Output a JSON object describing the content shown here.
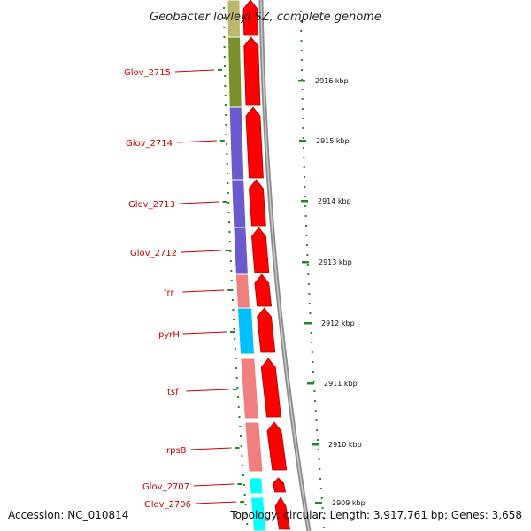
{
  "title": "Geobacter lovleyi SZ, complete genome",
  "footer": {
    "accession": "Accession: NC_010814",
    "topology": "Topology: circular; Length: 3,917,761 bp; Genes: 3,658"
  },
  "colors": {
    "red_arrow": "#ff0000",
    "dark_red": "#b00000",
    "backbone": "#8c8c8c",
    "tick_green": "#1f8a1f",
    "label_red": "#cc0000"
  },
  "genes": [
    {
      "name": "Glov_2715",
      "color": "#7a8f2a"
    },
    {
      "name": "Glov_2714",
      "color": "#6a5acd"
    },
    {
      "name": "Glov_2713",
      "color": "#6a5acd"
    },
    {
      "name": "Glov_2712",
      "color": "#6a5acd"
    },
    {
      "name": "frr",
      "color": "#f08080"
    },
    {
      "name": "pyrH",
      "color": "#00bfff"
    },
    {
      "name": "tsf",
      "color": "#f08080"
    },
    {
      "name": "rpsB",
      "color": "#f08080"
    },
    {
      "name": "Glov_2707",
      "color": "#00ffff"
    },
    {
      "name": "Glov_2706",
      "color": "#00ffff"
    }
  ],
  "top_partial_color": "#bdb76b",
  "kbp_labels": [
    "2916 kbp",
    "2915 kbp",
    "2914 kbp",
    "2913 kbp",
    "2912 kbp",
    "2911 kbp",
    "2910 kbp",
    "2909 kbp"
  ]
}
